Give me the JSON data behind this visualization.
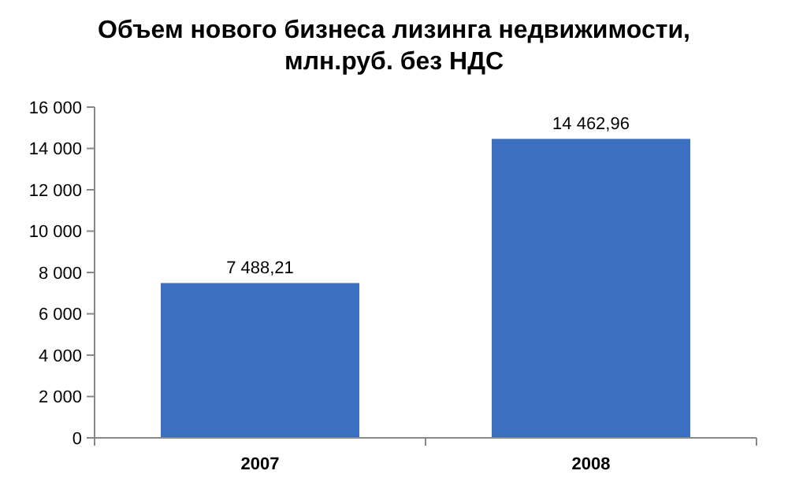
{
  "chart_data": {
    "type": "bar",
    "title": "Объем нового бизнеса лизинга недвижимости, млн.руб. без НДС",
    "categories": [
      "2007",
      "2008"
    ],
    "values": [
      7488.21,
      14462.96
    ],
    "value_labels": [
      "7 488,21",
      "14 462,96"
    ],
    "color": "#3b6fc0",
    "ylim": [
      0,
      16000
    ],
    "yticks": [
      {
        "value": 0,
        "label": "0"
      },
      {
        "value": 2000,
        "label": "2 000"
      },
      {
        "value": 4000,
        "label": "4 000"
      },
      {
        "value": 6000,
        "label": "6 000"
      },
      {
        "value": 8000,
        "label": "8 000"
      },
      {
        "value": 10000,
        "label": "10 000"
      },
      {
        "value": 12000,
        "label": "12 000"
      },
      {
        "value": 14000,
        "label": "14 000"
      },
      {
        "value": 16000,
        "label": "16 000"
      }
    ],
    "grid": false
  }
}
